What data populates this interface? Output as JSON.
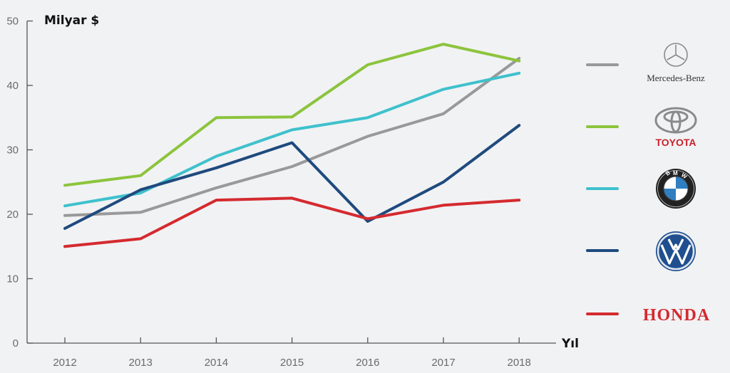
{
  "chart_data": {
    "type": "line",
    "ylabel": "Milyar $",
    "xlabel": "Yıl",
    "x": [
      2012,
      2013,
      2014,
      2015,
      2016,
      2017,
      2018
    ],
    "ylim": [
      0,
      50
    ],
    "yticks": [
      0,
      10,
      20,
      30,
      40,
      50
    ],
    "grid": false,
    "legend_position": "right",
    "series": [
      {
        "name": "Mercedes-Benz",
        "color": "#999999",
        "values": [
          19.8,
          20.3,
          24.1,
          27.4,
          32.1,
          35.6,
          44.2
        ]
      },
      {
        "name": "TOYOTA",
        "color": "#8cc43c",
        "values": [
          24.5,
          26.0,
          35.0,
          35.1,
          43.2,
          46.4,
          43.8
        ]
      },
      {
        "name": "BMW",
        "color": "#3ec1cc",
        "values": [
          21.3,
          23.3,
          29.0,
          33.1,
          35.0,
          39.4,
          41.9
        ]
      },
      {
        "name": "VW",
        "color": "#1e4a7e",
        "values": [
          17.8,
          23.8,
          27.2,
          31.1,
          18.9,
          25.0,
          33.8
        ]
      },
      {
        "name": "HONDA",
        "color": "#d42a2f",
        "values": [
          15.0,
          16.2,
          22.2,
          22.5,
          19.3,
          21.4,
          22.2
        ]
      }
    ]
  }
}
